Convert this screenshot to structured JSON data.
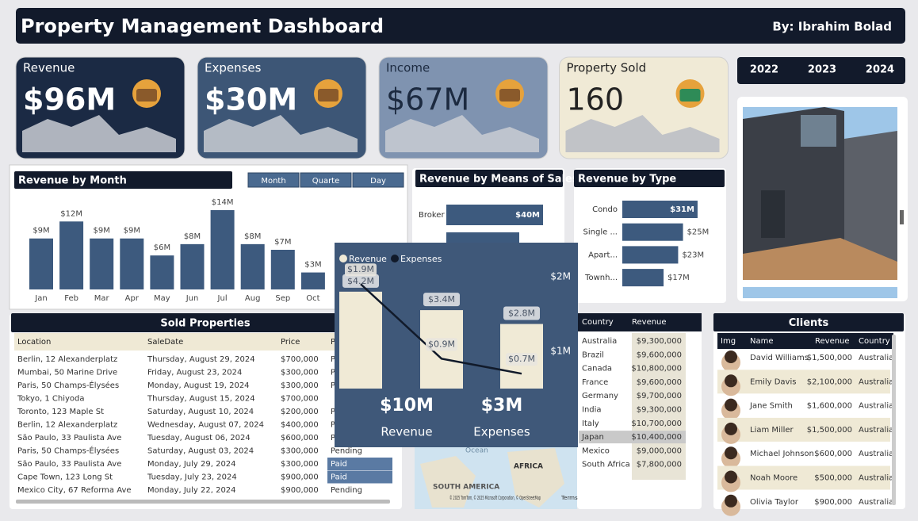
{
  "header": {
    "title": "Property Management Dashboard",
    "author": "By: Ibrahim Bolad"
  },
  "years": [
    "2022",
    "2023",
    "2024"
  ],
  "kpis": [
    {
      "label": "Revenue",
      "value": "$96M",
      "color": "#1b2a44"
    },
    {
      "label": "Expenses",
      "value": "$30M",
      "color": "#3d5676"
    },
    {
      "label": "Income",
      "value": "$67M",
      "color": "#7f93b0"
    },
    {
      "label": "Property Sold",
      "value": "160",
      "color": "#f0ead6"
    }
  ],
  "month_buttons": [
    "Month",
    "Quarte",
    "Day"
  ],
  "chart_data": [
    {
      "type": "bar",
      "title": "Revenue by Month",
      "color": "#3d5a7e",
      "categories": [
        "Jan",
        "Feb",
        "Mar",
        "Apr",
        "May",
        "Jun",
        "Jul",
        "Aug",
        "Sep",
        "Oct"
      ],
      "values": [
        9,
        12,
        9,
        9,
        6,
        8,
        14,
        8,
        7,
        3
      ],
      "value_labels": [
        "$9M",
        "$12M",
        "$9M",
        "$9M",
        "$6M",
        "$8M",
        "$14M",
        "$8M",
        "$7M",
        "$3M"
      ],
      "ylim": [
        0,
        14
      ]
    },
    {
      "type": "barh",
      "title": "Revenue by Means of Sales",
      "color": "#3d5a7e",
      "categories": [
        "Broker"
      ],
      "values": [
        40
      ],
      "value_labels": [
        "$40M"
      ],
      "xlim": [
        0,
        40
      ]
    },
    {
      "type": "barh",
      "title": "Revenue by Type",
      "color": "#3d5a7e",
      "categories": [
        "Condo",
        "Single ...",
        "Apart...",
        "Townh..."
      ],
      "values": [
        31,
        25,
        23,
        17
      ],
      "value_labels": [
        "$31M",
        "$25M",
        "$23M",
        "$17M"
      ],
      "xlim": [
        0,
        32
      ]
    },
    {
      "type": "combo",
      "categories": [
        null,
        null,
        null
      ],
      "series": [
        {
          "name": "Revenue",
          "color": "#f0ead6",
          "values": [
            4.2,
            3.4,
            2.8
          ],
          "value_labels": [
            "$4.2M",
            "$3.4M",
            "$2.8M"
          ]
        },
        {
          "name": "Expenses",
          "color": "#111a2a",
          "axis": "y2",
          "values": [
            1.9,
            0.9,
            0.7
          ],
          "value_labels": [
            "$1.9M",
            "$0.9M",
            "$0.7M"
          ]
        }
      ],
      "ylim": [
        0,
        5.5
      ],
      "y2lim": [
        0.5,
        2.2
      ],
      "y2ticks": [
        {
          "value": 2,
          "label": "$2M"
        },
        {
          "value": 1,
          "label": "$1M"
        }
      ],
      "totals": [
        {
          "value": "$10M",
          "label": "Revenue"
        },
        {
          "value": "$3M",
          "label": "Expenses"
        }
      ]
    }
  ],
  "sold_properties": {
    "title": "Sold Properties",
    "columns": [
      "Location",
      "SaleDate",
      "Price",
      "P"
    ],
    "rows": [
      [
        "Berlin, 12 Alexanderplatz",
        "Thursday, August 29, 2024",
        "$700,000",
        "P"
      ],
      [
        "Mumbai, 50 Marine Drive",
        "Friday, August 23, 2024",
        "$300,000",
        "P"
      ],
      [
        "Paris, 50 Champs-Élysées",
        "Monday, August 19, 2024",
        "$300,000",
        "P"
      ],
      [
        "Tokyo, 1 Chiyoda",
        "Thursday, August 15, 2024",
        "$700,000",
        null
      ],
      [
        "Toronto, 123 Maple St",
        "Saturday, August 10, 2024",
        "$200,000",
        "P"
      ],
      [
        "Berlin, 12 Alexanderplatz",
        "Wednesday, August 07, 2024",
        "$400,000",
        "P"
      ],
      [
        "São Paulo, 33 Paulista Ave",
        "Tuesday, August 06, 2024",
        "$600,000",
        "P"
      ],
      [
        "Paris, 50 Champs-Élysées",
        "Saturday, August 03, 2024",
        "$300,000",
        "Pending"
      ],
      [
        "São Paulo, 33 Paulista Ave",
        "Monday, July 29, 2024",
        "$300,000",
        "Paid"
      ],
      [
        "Cape Town, 123 Long St",
        "Tuesday, July 23, 2024",
        "$900,000",
        "Paid"
      ],
      [
        "Mexico City, 67 Reforma Ave",
        "Monday, July 22, 2024",
        "$900,000",
        "Pending"
      ]
    ]
  },
  "countries": {
    "columns": [
      "Country",
      "Revenue"
    ],
    "rows": [
      [
        "Australia",
        "$9,300,000"
      ],
      [
        "Brazil",
        "$9,600,000"
      ],
      [
        "Canada",
        "$10,800,000"
      ],
      [
        "France",
        "$9,600,000"
      ],
      [
        "Germany",
        "$9,700,000"
      ],
      [
        "India",
        "$9,300,000"
      ],
      [
        "Italy",
        "$10,700,000"
      ],
      [
        "Japan",
        "$10,400,000"
      ],
      [
        "Mexico",
        "$9,000,000"
      ],
      [
        "South Africa",
        "$7,800,000"
      ]
    ]
  },
  "clients": {
    "title": "Clients",
    "columns": [
      "Img",
      "Name",
      "Revenue",
      "Country"
    ],
    "rows": [
      [
        "David Williams",
        "$1,500,000",
        "Australia"
      ],
      [
        "Emily Davis",
        "$2,100,000",
        "Australia"
      ],
      [
        "Jane Smith",
        "$1,600,000",
        "Australia"
      ],
      [
        "Liam Miller",
        "$1,500,000",
        "Australia"
      ],
      [
        "Michael Johnson",
        "$600,000",
        "Australia"
      ],
      [
        "Noah Moore",
        "$500,000",
        "Australia"
      ],
      [
        "Olivia Taylor",
        "$900,000",
        "Australia"
      ]
    ]
  },
  "map": {
    "labels": [
      "Ocean",
      "AFRICA",
      "SOUTH AMERICA"
    ],
    "credit": "© 2025 TomTom, © 2025 Microsoft Corporation, © OpenStreetMap",
    "terms": "Terms"
  }
}
